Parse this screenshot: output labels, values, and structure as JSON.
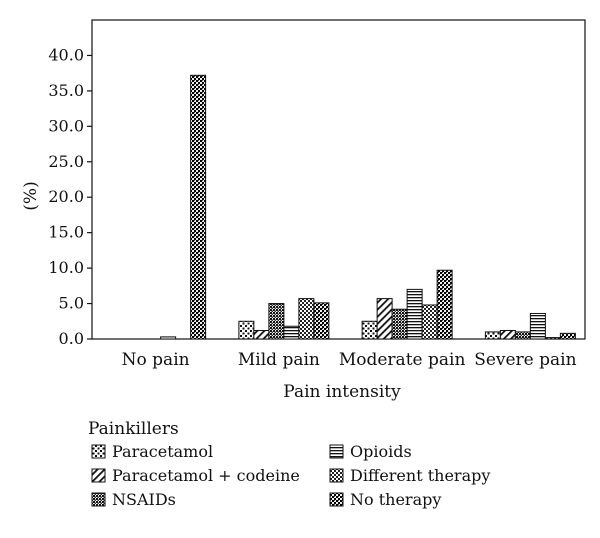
{
  "chart_data": {
    "type": "bar",
    "title": "",
    "xlabel": "Pain intensity",
    "ylabel": "(%)",
    "ylim": [
      0,
      45
    ],
    "yticks": [
      "0.0",
      "5.0",
      "10.0",
      "15.0",
      "20.0",
      "25.0",
      "30.0",
      "35.0",
      "40.0"
    ],
    "grid": false,
    "categories": [
      "No pain",
      "Mild pain",
      "Moderate pain",
      "Severe pain"
    ],
    "legend": {
      "title": "Painkillers",
      "placement": "bottom"
    },
    "series": [
      {
        "name": "Paracetamol",
        "pattern": "plus-grid",
        "values": [
          0.0,
          2.5,
          2.5,
          1.0
        ]
      },
      {
        "name": "Paracetamol + codeine",
        "pattern": "diagonal",
        "values": [
          0.0,
          1.2,
          5.7,
          1.2
        ]
      },
      {
        "name": "NSAIDs",
        "pattern": "dense-check",
        "values": [
          0.0,
          5.0,
          4.2,
          1.0
        ]
      },
      {
        "name": "Opioids",
        "pattern": "horizontal",
        "values": [
          0.3,
          1.8,
          7.0,
          3.6
        ]
      },
      {
        "name": "Different therapy",
        "pattern": "check",
        "values": [
          0.0,
          5.7,
          4.8,
          0.2
        ]
      },
      {
        "name": "No therapy",
        "pattern": "check-bold",
        "values": [
          37.2,
          5.1,
          9.7,
          0.8
        ]
      }
    ]
  }
}
